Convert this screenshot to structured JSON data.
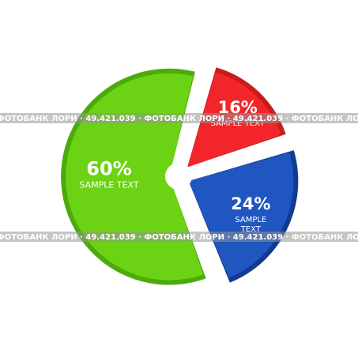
{
  "chart_data": {
    "type": "pie",
    "title": "",
    "slices": [
      {
        "value": 60,
        "label": "60%",
        "caption": [
          "SAMPLE TEXT"
        ],
        "color": "#6bd313",
        "rim_color": "#4daa0c"
      },
      {
        "value": 16,
        "label": "16%",
        "caption": [
          "SAMPLE TEXT"
        ],
        "color": "#f2262a",
        "rim_color": "#c81c1e"
      },
      {
        "value": 24,
        "label": "24%",
        "caption": [
          "SAMPLE",
          "TEXT"
        ],
        "color": "#1f56c0",
        "rim_color": "#123b8f"
      }
    ],
    "donut_hole": true,
    "exploded": true
  },
  "watermark": {
    "text": "ФОТОБАНК ЛОРИ · 49.421.039 · ФОТОБАНК ЛОРИ · 49.421.039 · ФОТОБАНК ЛОРИ · 49.421.039 · ФОТОБАНК ЛОРИ · 49.42",
    "band_color": "#9a9a9a"
  }
}
